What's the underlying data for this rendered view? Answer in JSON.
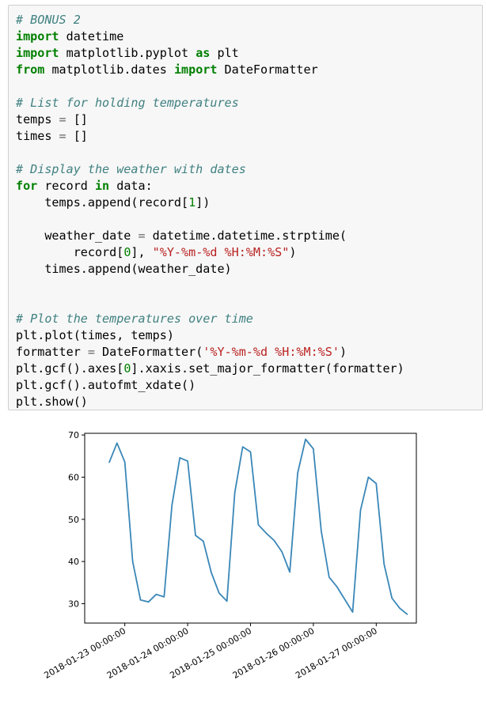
{
  "code": {
    "lines": [
      [
        {
          "t": "# BONUS 2",
          "c": "cm"
        }
      ],
      [
        {
          "t": "import",
          "c": "kw"
        },
        {
          "t": " datetime"
        }
      ],
      [
        {
          "t": "import",
          "c": "kw"
        },
        {
          "t": " matplotlib.pyplot "
        },
        {
          "t": "as",
          "c": "kw"
        },
        {
          "t": " plt"
        }
      ],
      [
        {
          "t": "from",
          "c": "kw"
        },
        {
          "t": " matplotlib.dates "
        },
        {
          "t": "import",
          "c": "kw"
        },
        {
          "t": " DateFormatter"
        }
      ],
      [],
      [
        {
          "t": "# List for holding temperatures",
          "c": "cm"
        }
      ],
      [
        {
          "t": "temps "
        },
        {
          "t": "=",
          "c": "op"
        },
        {
          "t": " []"
        }
      ],
      [
        {
          "t": "times "
        },
        {
          "t": "=",
          "c": "op"
        },
        {
          "t": " []"
        }
      ],
      [],
      [
        {
          "t": "# Display the weather with dates",
          "c": "cm"
        }
      ],
      [
        {
          "t": "for",
          "c": "kw"
        },
        {
          "t": " record "
        },
        {
          "t": "in",
          "c": "kw"
        },
        {
          "t": " data:"
        }
      ],
      [
        {
          "t": "    temps.append(record["
        },
        {
          "t": "1",
          "c": "nm"
        },
        {
          "t": "])"
        }
      ],
      [],
      [
        {
          "t": "    weather_date "
        },
        {
          "t": "=",
          "c": "op"
        },
        {
          "t": " datetime.datetime.strptime("
        }
      ],
      [
        {
          "t": "        record["
        },
        {
          "t": "0",
          "c": "nm"
        },
        {
          "t": "], "
        },
        {
          "t": "\"%Y-%m-%d %H:%M:%S\"",
          "c": "st"
        },
        {
          "t": ")"
        }
      ],
      [
        {
          "t": "    times.append(weather_date)"
        }
      ],
      [],
      [],
      [
        {
          "t": "# Plot the temperatures over time",
          "c": "cm"
        }
      ],
      [
        {
          "t": "plt.plot(times, temps)"
        }
      ],
      [
        {
          "t": "formatter "
        },
        {
          "t": "=",
          "c": "op"
        },
        {
          "t": " DateFormatter("
        },
        {
          "t": "'%Y-%m-%d %H:%M:%S'",
          "c": "st"
        },
        {
          "t": ")"
        }
      ],
      [
        {
          "t": "plt.gcf().axes["
        },
        {
          "t": "0",
          "c": "nm"
        },
        {
          "t": "].xaxis.set_major_formatter(formatter)"
        }
      ],
      [
        {
          "t": "plt.gcf().autofmt_xdate()"
        }
      ],
      [
        {
          "t": "plt.show()"
        }
      ]
    ]
  },
  "chart_data": {
    "type": "line",
    "title": "",
    "xlabel": "",
    "ylabel": "",
    "x_ticks": [
      "2018-01-23 00:00:00",
      "2018-01-24 00:00:00",
      "2018-01-25 00:00:00",
      "2018-01-26 00:00:00",
      "2018-01-27 00:00:00"
    ],
    "y_ticks": [
      30,
      40,
      50,
      60,
      70
    ],
    "ylim": [
      25.4,
      70.4
    ],
    "xlim": [
      "2018-01-22 08:41",
      "2018-01-27 15:19"
    ],
    "grid": false,
    "series": [
      {
        "color": "#3a87b8",
        "x": [
          "2018-01-22 18:00",
          "2018-01-22 21:00",
          "2018-01-23 00:00",
          "2018-01-23 03:00",
          "2018-01-23 06:00",
          "2018-01-23 09:00",
          "2018-01-23 12:00",
          "2018-01-23 15:00",
          "2018-01-23 18:00",
          "2018-01-23 21:00",
          "2018-01-24 00:00",
          "2018-01-24 03:00",
          "2018-01-24 06:00",
          "2018-01-24 09:00",
          "2018-01-24 12:00",
          "2018-01-24 15:00",
          "2018-01-24 18:00",
          "2018-01-24 21:00",
          "2018-01-25 00:00",
          "2018-01-25 03:00",
          "2018-01-25 06:00",
          "2018-01-25 09:00",
          "2018-01-25 12:00",
          "2018-01-25 15:00",
          "2018-01-25 18:00",
          "2018-01-25 21:00",
          "2018-01-26 00:00",
          "2018-01-26 03:00",
          "2018-01-26 06:00",
          "2018-01-26 09:00",
          "2018-01-26 12:00",
          "2018-01-26 15:00",
          "2018-01-26 18:00",
          "2018-01-26 21:00",
          "2018-01-27 00:00",
          "2018-01-27 03:00",
          "2018-01-27 06:00",
          "2018-01-27 09:00",
          "2018-01-27 12:00"
        ],
        "values": [
          63.4,
          68.1,
          63.6,
          40.0,
          30.9,
          30.4,
          32.2,
          31.6,
          53.3,
          64.6,
          63.8,
          46.2,
          44.8,
          37.4,
          32.5,
          30.6,
          56.3,
          67.2,
          66.0,
          48.7,
          46.7,
          45.0,
          42.3,
          37.5,
          61.0,
          69.0,
          66.7,
          47.3,
          36.3,
          34.0,
          31.0,
          28.0,
          52.2,
          60.0,
          58.5,
          39.4,
          31.3,
          28.9,
          27.4
        ]
      }
    ]
  }
}
